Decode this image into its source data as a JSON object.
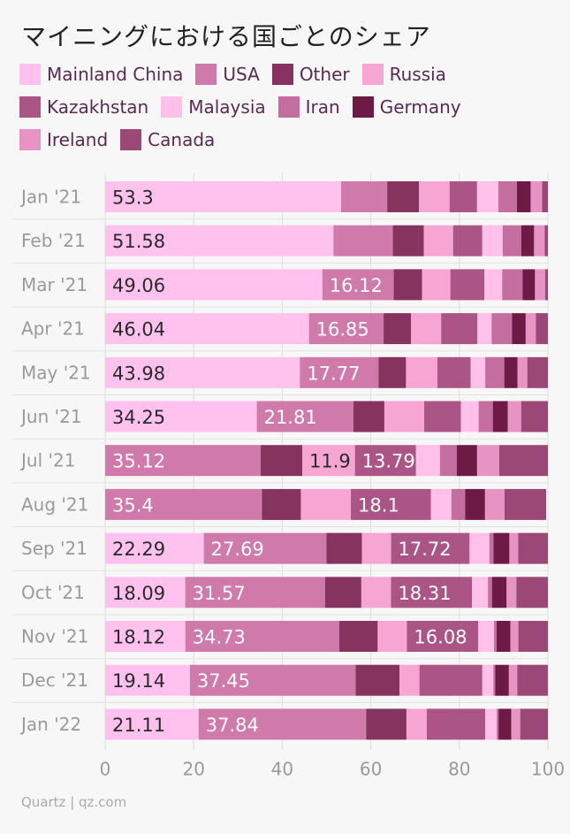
{
  "title": "マイニングにおける国ごとのシェア",
  "source": "Quartz | qz.com",
  "colors": {
    "Mainland China": "#ffc2ee",
    "USA": "#cf7aaa",
    "Other": "#86335f",
    "Russia": "#f7a5d2",
    "Kazakhstan": "#aa5585",
    "Malaysia": "#ffc0ea",
    "Iran": "#c46d9f",
    "Germany": "#6e1a47",
    "Ireland": "#e793c3",
    "Canada": "#9b4876"
  },
  "chart_data": {
    "type": "bar",
    "orientation": "horizontal",
    "stacked": true,
    "xlim": [
      0,
      100
    ],
    "xticks": [
      "0",
      "20",
      "40",
      "60",
      "80",
      "100"
    ],
    "categories": [
      "Jan '21",
      "Feb '21",
      "Mar '21",
      "Apr '21",
      "May '21",
      "Jun '21",
      "Jul '21",
      "Aug '21",
      "Sep '21",
      "Oct '21",
      "Nov '21",
      "Dec '21",
      "Jan '22"
    ],
    "series": [
      {
        "name": "Mainland China",
        "values": [
          53.3,
          51.58,
          49.06,
          46.04,
          43.98,
          34.25,
          0,
          0,
          22.29,
          18.09,
          18.12,
          19.14,
          21.11
        ]
      },
      {
        "name": "USA",
        "values": [
          10.4,
          13.4,
          16.12,
          16.85,
          17.77,
          21.81,
          35.12,
          35.4,
          27.69,
          31.57,
          34.73,
          37.45,
          37.84
        ]
      },
      {
        "name": "Other",
        "values": [
          7.2,
          7.0,
          6.4,
          6.2,
          6.2,
          7.0,
          9.4,
          8.8,
          8.0,
          8.2,
          8.7,
          9.9,
          9.1
        ]
      },
      {
        "name": "Russia",
        "values": [
          6.9,
          6.6,
          6.4,
          6.8,
          7.1,
          9.0,
          11.9,
          11.3,
          6.6,
          6.7,
          6.6,
          4.5,
          4.6
        ]
      },
      {
        "name": "Kazakhstan",
        "values": [
          6.2,
          6.6,
          7.7,
          8.2,
          7.5,
          8.3,
          13.79,
          18.1,
          17.72,
          18.31,
          16.08,
          14.2,
          13.2
        ]
      },
      {
        "name": "Malaysia",
        "values": [
          4.8,
          4.6,
          4.0,
          3.2,
          3.3,
          4.0,
          5.4,
          4.6,
          4.5,
          3.6,
          3.6,
          2.5,
          2.6
        ]
      },
      {
        "name": "Iran",
        "values": [
          4.2,
          4.2,
          4.6,
          4.6,
          4.3,
          3.2,
          3.8,
          3.1,
          0.9,
          0.9,
          0.6,
          0.4,
          0.4
        ]
      },
      {
        "name": "Germany",
        "values": [
          3.1,
          2.9,
          2.8,
          3.1,
          3.0,
          3.4,
          4.6,
          4.5,
          3.6,
          3.3,
          3.1,
          3.1,
          2.9
        ]
      },
      {
        "name": "Ireland",
        "values": [
          2.6,
          2.4,
          2.3,
          2.3,
          2.2,
          3.0,
          5.0,
          4.4,
          2.0,
          2.2,
          1.8,
          1.9,
          2.0
        ]
      },
      {
        "name": "Canada",
        "values": [
          1.3,
          0.72,
          0.62,
          2.71,
          4.65,
          6.04,
          10.99,
          9.4,
          6.7,
          7.13,
          6.68,
          6.9,
          6.25
        ]
      }
    ],
    "data_labels": [
      [
        "53.3"
      ],
      [
        "51.58"
      ],
      [
        "49.06",
        "16.12"
      ],
      [
        "46.04",
        "16.85"
      ],
      [
        "43.98",
        "17.77"
      ],
      [
        "34.25",
        "21.81"
      ],
      [
        "35.12",
        "11.9",
        "13.79"
      ],
      [
        "35.4",
        "18.1"
      ],
      [
        "22.29",
        "27.69",
        "17.72"
      ],
      [
        "18.09",
        "31.57",
        "18.31"
      ],
      [
        "18.12",
        "34.73",
        "16.08"
      ],
      [
        "19.14",
        "37.45"
      ],
      [
        "21.11",
        "37.84"
      ]
    ],
    "grid": true,
    "legend_position": "top"
  }
}
